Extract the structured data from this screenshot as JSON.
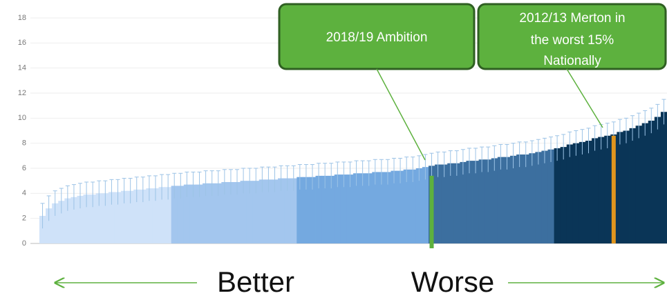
{
  "chart_data": {
    "type": "bar",
    "ylim": [
      0,
      18
    ],
    "yticks": [
      0,
      2,
      4,
      6,
      8,
      10,
      12,
      14,
      16,
      18
    ],
    "grid": true,
    "error_color": "#9cc3e6",
    "series": [
      {
        "color": "#cfe2f9",
        "values": [
          2.2,
          2.8,
          3.2,
          3.4,
          3.6,
          3.7,
          3.8,
          3.9,
          3.9,
          4.0,
          4.0,
          4.1,
          4.1,
          4.2,
          4.2,
          4.3,
          4.3,
          4.4,
          4.4,
          4.5,
          4.5
        ],
        "errors": [
          1,
          1,
          1,
          1,
          1,
          1,
          1,
          1,
          1,
          1,
          1,
          1,
          1,
          1,
          1,
          1,
          1,
          1,
          1,
          1,
          1
        ]
      },
      {
        "color": "#a3c6ee",
        "values": [
          4.6,
          4.6,
          4.7,
          4.7,
          4.7,
          4.8,
          4.8,
          4.8,
          4.9,
          4.9,
          4.9,
          5.0,
          5.0,
          5.0,
          5.1,
          5.1,
          5.1,
          5.2,
          5.2,
          5.2
        ],
        "errors": [
          1,
          1,
          1,
          1,
          1,
          1,
          1,
          1,
          1,
          1,
          1,
          1,
          1,
          1,
          1,
          1,
          1,
          1,
          1,
          1
        ]
      },
      {
        "color": "#74a9e0",
        "values": [
          5.3,
          5.3,
          5.3,
          5.4,
          5.4,
          5.4,
          5.5,
          5.5,
          5.5,
          5.6,
          5.6,
          5.6,
          5.7,
          5.7,
          5.7,
          5.8,
          5.8,
          5.9,
          5.9,
          6.0,
          6.1
        ],
        "errors": [
          1,
          1,
          1,
          1,
          1,
          1,
          1,
          1,
          1,
          1,
          1,
          1,
          1,
          1,
          1,
          1,
          1,
          1,
          1,
          1,
          1
        ]
      },
      {
        "color": "#3c6f9f",
        "values": [
          6.2,
          6.3,
          6.3,
          6.4,
          6.4,
          6.5,
          6.6,
          6.6,
          6.7,
          6.7,
          6.8,
          6.9,
          6.9,
          7.0,
          7.1,
          7.1,
          7.2,
          7.3,
          7.4,
          7.5
        ],
        "errors": [
          1,
          1,
          1,
          1,
          1,
          1,
          1,
          1,
          1,
          1,
          1,
          1,
          1,
          1,
          1,
          1,
          1,
          1,
          1,
          1
        ]
      },
      {
        "color": "#0a3557",
        "values": [
          7.6,
          7.7,
          7.9,
          8.0,
          8.1,
          8.2,
          8.4,
          8.5,
          8.6,
          8.7,
          8.9,
          9.0,
          9.2,
          9.4,
          9.6,
          9.8,
          10.1,
          10.5
        ],
        "errors": [
          1,
          1,
          1,
          1,
          1,
          1,
          1,
          1,
          1,
          1,
          1,
          1,
          1,
          1,
          1,
          1,
          1,
          1
        ]
      }
    ],
    "markers": [
      {
        "index": 62,
        "value": 5.4,
        "color": "#5db13e"
      },
      {
        "index": 91,
        "value": 8.6,
        "color": "#e0951e"
      }
    ],
    "annotations": [
      {
        "lines": [
          "2018/19 Ambition"
        ]
      },
      {
        "lines": [
          "2012/13 Merton in",
          "the worst 15%",
          "Nationally"
        ]
      }
    ],
    "footer": {
      "left": "Better",
      "right": "Worse"
    }
  }
}
